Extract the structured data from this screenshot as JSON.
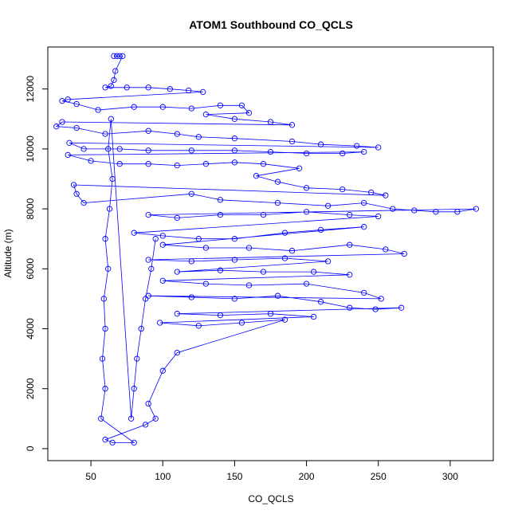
{
  "chart_data": {
    "type": "scatter",
    "title": "ATOM1 Southbound CO_QCLS",
    "xlabel": "CO_QCLS",
    "ylabel": "Altitude (m)",
    "xlim": [
      20,
      330
    ],
    "ylim": [
      -400,
      13400
    ],
    "x_ticks": [
      50,
      100,
      150,
      200,
      250,
      300
    ],
    "y_ticks": [
      0,
      2000,
      4000,
      6000,
      8000,
      10000,
      12000
    ],
    "grid": false,
    "marker": "open-circle",
    "color": "#0000ff",
    "series": [
      {
        "values": [
          {
            "x": 66,
            "y": 13100
          },
          {
            "x": 68,
            "y": 13100
          },
          {
            "x": 70,
            "y": 13100
          },
          {
            "x": 72,
            "y": 13100
          },
          {
            "x": 67,
            "y": 12600
          },
          {
            "x": 66,
            "y": 12300
          },
          {
            "x": 64,
            "y": 12100
          },
          {
            "x": 60,
            "y": 12050
          },
          {
            "x": 75,
            "y": 12050
          },
          {
            "x": 90,
            "y": 12050
          },
          {
            "x": 105,
            "y": 12000
          },
          {
            "x": 118,
            "y": 11950
          },
          {
            "x": 128,
            "y": 11900
          },
          {
            "x": 34,
            "y": 11650
          },
          {
            "x": 30,
            "y": 11600
          },
          {
            "x": 40,
            "y": 11500
          },
          {
            "x": 55,
            "y": 11300
          },
          {
            "x": 80,
            "y": 11400
          },
          {
            "x": 100,
            "y": 11400
          },
          {
            "x": 120,
            "y": 11350
          },
          {
            "x": 140,
            "y": 11450
          },
          {
            "x": 155,
            "y": 11450
          },
          {
            "x": 160,
            "y": 11200
          },
          {
            "x": 130,
            "y": 11150
          },
          {
            "x": 150,
            "y": 11000
          },
          {
            "x": 175,
            "y": 10900
          },
          {
            "x": 190,
            "y": 10800
          },
          {
            "x": 30,
            "y": 10900
          },
          {
            "x": 26,
            "y": 10750
          },
          {
            "x": 40,
            "y": 10700
          },
          {
            "x": 60,
            "y": 10500
          },
          {
            "x": 90,
            "y": 10600
          },
          {
            "x": 110,
            "y": 10500
          },
          {
            "x": 125,
            "y": 10400
          },
          {
            "x": 150,
            "y": 10350
          },
          {
            "x": 190,
            "y": 10250
          },
          {
            "x": 210,
            "y": 10150
          },
          {
            "x": 235,
            "y": 10100
          },
          {
            "x": 250,
            "y": 10050
          },
          {
            "x": 35,
            "y": 10200
          },
          {
            "x": 45,
            "y": 10000
          },
          {
            "x": 70,
            "y": 10000
          },
          {
            "x": 90,
            "y": 9950
          },
          {
            "x": 120,
            "y": 9950
          },
          {
            "x": 150,
            "y": 9950
          },
          {
            "x": 175,
            "y": 9900
          },
          {
            "x": 200,
            "y": 9850
          },
          {
            "x": 225,
            "y": 9850
          },
          {
            "x": 240,
            "y": 9900
          },
          {
            "x": 34,
            "y": 9800
          },
          {
            "x": 50,
            "y": 9600
          },
          {
            "x": 70,
            "y": 9500
          },
          {
            "x": 90,
            "y": 9500
          },
          {
            "x": 110,
            "y": 9450
          },
          {
            "x": 130,
            "y": 9500
          },
          {
            "x": 150,
            "y": 9550
          },
          {
            "x": 170,
            "y": 9500
          },
          {
            "x": 195,
            "y": 9350
          },
          {
            "x": 165,
            "y": 9100
          },
          {
            "x": 180,
            "y": 8900
          },
          {
            "x": 200,
            "y": 8700
          },
          {
            "x": 225,
            "y": 8650
          },
          {
            "x": 245,
            "y": 8550
          },
          {
            "x": 255,
            "y": 8450
          },
          {
            "x": 38,
            "y": 8800
          },
          {
            "x": 40,
            "y": 8500
          },
          {
            "x": 45,
            "y": 8200
          },
          {
            "x": 120,
            "y": 8500
          },
          {
            "x": 140,
            "y": 8300
          },
          {
            "x": 180,
            "y": 8200
          },
          {
            "x": 215,
            "y": 8100
          },
          {
            "x": 240,
            "y": 8200
          },
          {
            "x": 260,
            "y": 8000
          },
          {
            "x": 275,
            "y": 7950
          },
          {
            "x": 290,
            "y": 7900
          },
          {
            "x": 305,
            "y": 7900
          },
          {
            "x": 318,
            "y": 8000
          },
          {
            "x": 90,
            "y": 7800
          },
          {
            "x": 110,
            "y": 7700
          },
          {
            "x": 140,
            "y": 7800
          },
          {
            "x": 170,
            "y": 7800
          },
          {
            "x": 200,
            "y": 7900
          },
          {
            "x": 230,
            "y": 7800
          },
          {
            "x": 250,
            "y": 7750
          },
          {
            "x": 80,
            "y": 7200
          },
          {
            "x": 100,
            "y": 7100
          },
          {
            "x": 125,
            "y": 7000
          },
          {
            "x": 150,
            "y": 7000
          },
          {
            "x": 185,
            "y": 7200
          },
          {
            "x": 210,
            "y": 7300
          },
          {
            "x": 240,
            "y": 7400
          },
          {
            "x": 100,
            "y": 6800
          },
          {
            "x": 130,
            "y": 6700
          },
          {
            "x": 160,
            "y": 6700
          },
          {
            "x": 190,
            "y": 6600
          },
          {
            "x": 230,
            "y": 6800
          },
          {
            "x": 255,
            "y": 6650
          },
          {
            "x": 268,
            "y": 6500
          },
          {
            "x": 90,
            "y": 6300
          },
          {
            "x": 120,
            "y": 6250
          },
          {
            "x": 150,
            "y": 6300
          },
          {
            "x": 185,
            "y": 6350
          },
          {
            "x": 215,
            "y": 6250
          },
          {
            "x": 110,
            "y": 5900
          },
          {
            "x": 140,
            "y": 5950
          },
          {
            "x": 170,
            "y": 5900
          },
          {
            "x": 205,
            "y": 5900
          },
          {
            "x": 230,
            "y": 5800
          },
          {
            "x": 100,
            "y": 5600
          },
          {
            "x": 130,
            "y": 5500
          },
          {
            "x": 160,
            "y": 5450
          },
          {
            "x": 200,
            "y": 5500
          },
          {
            "x": 240,
            "y": 5200
          },
          {
            "x": 252,
            "y": 5000
          },
          {
            "x": 90,
            "y": 5100
          },
          {
            "x": 120,
            "y": 5050
          },
          {
            "x": 150,
            "y": 5000
          },
          {
            "x": 180,
            "y": 5100
          },
          {
            "x": 210,
            "y": 4900
          },
          {
            "x": 230,
            "y": 4700
          },
          {
            "x": 248,
            "y": 4650
          },
          {
            "x": 266,
            "y": 4700
          },
          {
            "x": 110,
            "y": 4500
          },
          {
            "x": 140,
            "y": 4450
          },
          {
            "x": 175,
            "y": 4500
          },
          {
            "x": 205,
            "y": 4400
          },
          {
            "x": 98,
            "y": 4200
          },
          {
            "x": 125,
            "y": 4100
          },
          {
            "x": 155,
            "y": 4200
          },
          {
            "x": 185,
            "y": 4300
          },
          {
            "x": 110,
            "y": 3200
          },
          {
            "x": 100,
            "y": 2600
          },
          {
            "x": 90,
            "y": 1500
          },
          {
            "x": 95,
            "y": 1000
          },
          {
            "x": 88,
            "y": 800
          },
          {
            "x": 60,
            "y": 300
          },
          {
            "x": 65,
            "y": 200
          },
          {
            "x": 80,
            "y": 200
          },
          {
            "x": 57,
            "y": 1000
          },
          {
            "x": 60,
            "y": 2000
          },
          {
            "x": 58,
            "y": 3000
          },
          {
            "x": 60,
            "y": 4000
          },
          {
            "x": 59,
            "y": 5000
          },
          {
            "x": 62,
            "y": 6000
          },
          {
            "x": 60,
            "y": 7000
          },
          {
            "x": 63,
            "y": 8000
          },
          {
            "x": 65,
            "y": 9000
          },
          {
            "x": 62,
            "y": 10000
          },
          {
            "x": 64,
            "y": 11000
          },
          {
            "x": 78,
            "y": 1000
          },
          {
            "x": 80,
            "y": 2000
          },
          {
            "x": 82,
            "y": 3000
          },
          {
            "x": 85,
            "y": 4000
          },
          {
            "x": 88,
            "y": 5000
          },
          {
            "x": 92,
            "y": 6000
          },
          {
            "x": 95,
            "y": 7000
          }
        ]
      }
    ]
  }
}
